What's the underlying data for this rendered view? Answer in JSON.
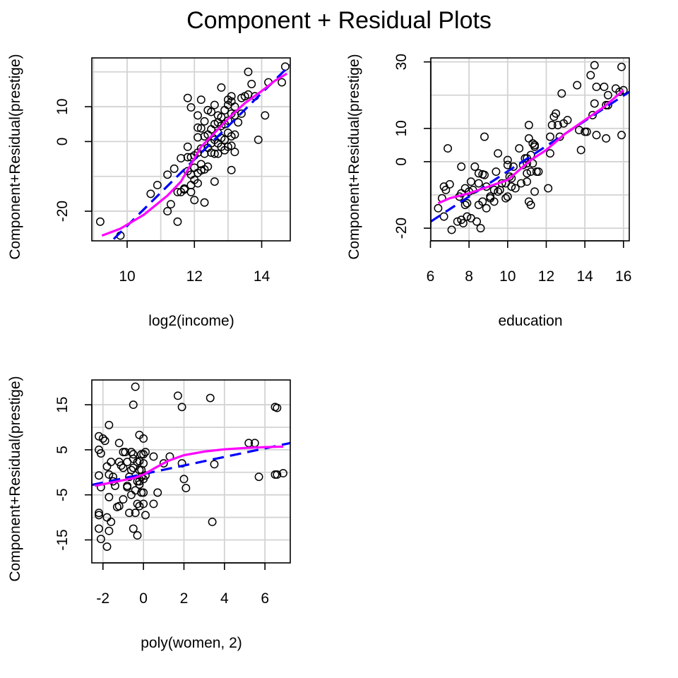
{
  "figure": {
    "title": "Component + Residual Plots"
  },
  "colors": {
    "points": "#000000",
    "linear_fit": "#0000ff",
    "smooth_fit": "#ff00ff",
    "grid": "#d3d3d3"
  },
  "chart_data": [
    {
      "type": "scatter",
      "xlabel": "log2(income)",
      "ylabel": "Component+Residual(prestige)",
      "xlim": [
        8.95,
        14.85
      ],
      "ylim": [
        -28.5,
        24
      ],
      "xticks": [
        10,
        12,
        14
      ],
      "yticks": [
        -20,
        0,
        10
      ],
      "xgrid": [
        9,
        10,
        11,
        12,
        13,
        14
      ],
      "ygrid": [
        -20,
        -10,
        0,
        10,
        20
      ],
      "grid": true,
      "points": [
        [
          9.2,
          -23
        ],
        [
          9.8,
          -27
        ],
        [
          10.7,
          -15
        ],
        [
          11.2,
          -20
        ],
        [
          10.9,
          -12.5
        ],
        [
          11.2,
          -9.5
        ],
        [
          11.3,
          -18
        ],
        [
          11.5,
          -23
        ],
        [
          11.4,
          -7.8
        ],
        [
          11.5,
          -14.5
        ],
        [
          11.6,
          -14.5
        ],
        [
          11.6,
          -4.8
        ],
        [
          11.7,
          -13.5
        ],
        [
          11.7,
          -13.8
        ],
        [
          11.8,
          -8.5
        ],
        [
          11.8,
          -4.5
        ],
        [
          11.8,
          -1.5
        ],
        [
          11.9,
          -14.5
        ],
        [
          11.9,
          -9.5
        ],
        [
          11.9,
          -4.5
        ],
        [
          11.9,
          -12.5
        ],
        [
          11.9,
          9.8
        ],
        [
          11.8,
          12.5
        ],
        [
          12,
          -16.8
        ],
        [
          12,
          -11
        ],
        [
          12,
          -7.5
        ],
        [
          12,
          -4
        ],
        [
          12.1,
          -12
        ],
        [
          12.1,
          -9
        ],
        [
          12.1,
          -3.2
        ],
        [
          12.1,
          1.2
        ],
        [
          12.1,
          4
        ],
        [
          12.1,
          7.5
        ],
        [
          12.2,
          -8.3
        ],
        [
          12.2,
          -6.5
        ],
        [
          12.2,
          -2
        ],
        [
          12.2,
          3.8
        ],
        [
          12.2,
          12
        ],
        [
          12.3,
          -17.5
        ],
        [
          12.3,
          -8
        ],
        [
          12.3,
          -3.5
        ],
        [
          12.3,
          1.5
        ],
        [
          12.3,
          5.8
        ],
        [
          12.4,
          -7.2
        ],
        [
          12.4,
          -1.8
        ],
        [
          12.4,
          2
        ],
        [
          12.4,
          9
        ],
        [
          12.5,
          -3.2
        ],
        [
          12.5,
          -0.5
        ],
        [
          12.5,
          3.5
        ],
        [
          12.5,
          8.5
        ],
        [
          12.6,
          -11.5
        ],
        [
          12.6,
          -3.5
        ],
        [
          12.6,
          0.5
        ],
        [
          12.6,
          5
        ],
        [
          12.6,
          10.5
        ],
        [
          12.7,
          -3.5
        ],
        [
          12.7,
          -0.5
        ],
        [
          12.7,
          2.5
        ],
        [
          12.7,
          5.5
        ],
        [
          12.7,
          7.5
        ],
        [
          12.8,
          -1.5
        ],
        [
          12.8,
          1
        ],
        [
          12.8,
          4.5
        ],
        [
          12.8,
          7
        ],
        [
          12.8,
          15.5
        ],
        [
          12.9,
          -2.5
        ],
        [
          12.9,
          0.5
        ],
        [
          12.9,
          5
        ],
        [
          12.9,
          9
        ],
        [
          13,
          -1.5
        ],
        [
          13,
          2.5
        ],
        [
          13,
          6
        ],
        [
          13,
          10.5
        ],
        [
          13,
          12
        ],
        [
          13.1,
          -8.2
        ],
        [
          13.1,
          -1.2
        ],
        [
          13.1,
          1.5
        ],
        [
          13.1,
          8
        ],
        [
          13.1,
          11.5
        ],
        [
          13.1,
          13
        ],
        [
          13.2,
          -3
        ],
        [
          13.2,
          2
        ],
        [
          13.2,
          7.5
        ],
        [
          13.2,
          10
        ],
        [
          13.3,
          5.5
        ],
        [
          13.4,
          8
        ],
        [
          13.4,
          12.5
        ],
        [
          13.5,
          13
        ],
        [
          13.6,
          20
        ],
        [
          13.6,
          13.5
        ],
        [
          13.8,
          13
        ],
        [
          13.9,
          0.5
        ],
        [
          14.1,
          7.5
        ],
        [
          14.2,
          17
        ],
        [
          14.6,
          17
        ],
        [
          14.7,
          21.5
        ],
        [
          13.7,
          16.5
        ]
      ],
      "linear_fit": [
        [
          9.6,
          -28
        ],
        [
          14.85,
          22
        ]
      ],
      "smooth_fit": [
        [
          9.25,
          -27
        ],
        [
          9.8,
          -25
        ],
        [
          10.5,
          -21
        ],
        [
          11.2,
          -15.5
        ],
        [
          11.6,
          -11.5
        ],
        [
          11.9,
          -6.5
        ],
        [
          12.2,
          -1.5
        ],
        [
          12.5,
          1.5
        ],
        [
          12.8,
          4.5
        ],
        [
          13.1,
          7.5
        ],
        [
          13.5,
          11
        ],
        [
          14,
          14.5
        ],
        [
          14.4,
          17.5
        ],
        [
          14.75,
          19.5
        ]
      ]
    },
    {
      "type": "scatter",
      "xlabel": "education",
      "ylabel": "Component+Residual(prestige)",
      "xlim": [
        6.02,
        16.3
      ],
      "ylim": [
        -23.8,
        31.2
      ],
      "xticks": [
        6,
        8,
        10,
        12,
        14,
        16
      ],
      "yticks": [
        -20,
        0,
        10,
        30
      ],
      "xgrid": [
        6,
        8,
        10,
        12,
        14,
        16
      ],
      "ygrid": [
        -20,
        -10,
        0,
        10,
        20,
        30
      ],
      "grid": true,
      "points": [
        [
          6.4,
          -14
        ],
        [
          6.6,
          -11
        ],
        [
          6.7,
          -7.5
        ],
        [
          6.7,
          -16.5
        ],
        [
          6.8,
          -8.5
        ],
        [
          6.9,
          4
        ],
        [
          7,
          -6.8
        ],
        [
          7.1,
          -20.5
        ],
        [
          7.4,
          -18
        ],
        [
          7.5,
          -10.5
        ],
        [
          7.6,
          -9.5
        ],
        [
          7.6,
          -17.5
        ],
        [
          7.6,
          -1.5
        ],
        [
          7.7,
          -18.5
        ],
        [
          7.8,
          -8
        ],
        [
          7.8,
          -13
        ],
        [
          7.9,
          -16.5
        ],
        [
          7.9,
          -12.5
        ],
        [
          8,
          -9
        ],
        [
          8.1,
          -6
        ],
        [
          8.1,
          -17
        ],
        [
          8.2,
          -8.5
        ],
        [
          8.3,
          -1.5
        ],
        [
          8.4,
          -18
        ],
        [
          8.5,
          -3.5
        ],
        [
          8.5,
          -6.5
        ],
        [
          8.5,
          -13
        ],
        [
          8.6,
          -20
        ],
        [
          8.7,
          -12
        ],
        [
          8.7,
          -3.8
        ],
        [
          8.8,
          -4
        ],
        [
          8.8,
          7.5
        ],
        [
          8.9,
          -14
        ],
        [
          8.9,
          -7.5
        ],
        [
          9.1,
          -10.5
        ],
        [
          9.1,
          -11
        ],
        [
          9.3,
          -12
        ],
        [
          9.3,
          -8.5
        ],
        [
          9.4,
          -3
        ],
        [
          9.5,
          2.5
        ],
        [
          9.5,
          -9
        ],
        [
          9.6,
          -8.5
        ],
        [
          9.7,
          -6.5
        ],
        [
          9.9,
          -6.5
        ],
        [
          9.9,
          -11
        ],
        [
          10,
          -10.5
        ],
        [
          10,
          -1
        ],
        [
          10,
          0.5
        ],
        [
          10.1,
          -4.5
        ],
        [
          10.2,
          -7.5
        ],
        [
          10.2,
          -5
        ],
        [
          10.3,
          -1.5
        ],
        [
          10.4,
          -8
        ],
        [
          10.6,
          4
        ],
        [
          10.7,
          -6.5
        ],
        [
          10.8,
          -1
        ],
        [
          10.9,
          1
        ],
        [
          11,
          -6
        ],
        [
          11,
          -3.5
        ],
        [
          11,
          -0.5
        ],
        [
          11,
          1
        ],
        [
          11.1,
          -12
        ],
        [
          11.1,
          7
        ],
        [
          11.1,
          11
        ],
        [
          11.2,
          -13
        ],
        [
          11.2,
          -3
        ],
        [
          11.2,
          2
        ],
        [
          11.3,
          5.5
        ],
        [
          11.3,
          -0.5
        ],
        [
          11.4,
          4.5
        ],
        [
          11.4,
          5
        ],
        [
          11.4,
          -9
        ],
        [
          11.5,
          -3
        ],
        [
          11.6,
          -3
        ],
        [
          12.1,
          -8
        ],
        [
          12.2,
          2.5
        ],
        [
          12.2,
          7.5
        ],
        [
          12.3,
          11
        ],
        [
          12.4,
          13.5
        ],
        [
          12.5,
          14.5
        ],
        [
          12.6,
          11
        ],
        [
          12.7,
          7.5
        ],
        [
          12.8,
          20.5
        ],
        [
          12.9,
          11.5
        ],
        [
          13.1,
          12.5
        ],
        [
          13.6,
          23
        ],
        [
          13.7,
          9.5
        ],
        [
          13.8,
          3.5
        ],
        [
          14,
          9
        ],
        [
          14.1,
          9
        ],
        [
          14.3,
          26
        ],
        [
          14.4,
          14
        ],
        [
          14.5,
          29
        ],
        [
          14.5,
          17.5
        ],
        [
          14.6,
          8
        ],
        [
          14.6,
          22.5
        ],
        [
          15,
          22.5
        ],
        [
          15.1,
          7
        ],
        [
          15.1,
          17
        ],
        [
          15.2,
          17
        ],
        [
          15.2,
          20
        ],
        [
          15.6,
          22
        ],
        [
          15.8,
          21
        ],
        [
          15.9,
          8
        ],
        [
          15.9,
          28.5
        ],
        [
          16,
          21.5
        ]
      ],
      "linear_fit": [
        [
          6.02,
          -18
        ],
        [
          16.3,
          21
        ]
      ],
      "smooth_fit": [
        [
          6.4,
          -12.5
        ],
        [
          7,
          -11
        ],
        [
          8,
          -9.5
        ],
        [
          9,
          -7.5
        ],
        [
          10,
          -5.5
        ],
        [
          10.5,
          -3
        ],
        [
          11.2,
          0.5
        ],
        [
          12,
          3.5
        ],
        [
          13,
          8.5
        ],
        [
          14,
          12.5
        ],
        [
          15,
          16.5
        ],
        [
          16,
          21.5
        ]
      ]
    },
    {
      "type": "scatter",
      "xlabel": "poly(women, 2)",
      "ylabel": "Component+Residual(prestige)",
      "xlim": [
        -2.55,
        7.25
      ],
      "ylim": [
        -20.1,
        20.5
      ],
      "xticks": [
        -2,
        0,
        2,
        4,
        6
      ],
      "yticks": [
        -15,
        -5,
        5,
        15
      ],
      "xgrid": [
        -2,
        0,
        2,
        4,
        6
      ],
      "ygrid": [
        -15,
        -10,
        -5,
        0,
        5,
        10,
        15
      ],
      "grid": true,
      "points": [
        [
          -2.2,
          8
        ],
        [
          -2.2,
          5
        ],
        [
          -2.1,
          4.2
        ],
        [
          -2.2,
          -0.7
        ],
        [
          -2.1,
          -3.3
        ],
        [
          -2.2,
          -9
        ],
        [
          -2.2,
          -9.5
        ],
        [
          -2.2,
          -12.5
        ],
        [
          -2.1,
          -14.8
        ],
        [
          -2,
          7.5
        ],
        [
          -1.9,
          7
        ],
        [
          -1.8,
          -16.5
        ],
        [
          -1.8,
          1.3
        ],
        [
          -1.7,
          -0.5
        ],
        [
          -1.7,
          -5.5
        ],
        [
          -1.8,
          -10
        ],
        [
          -1.7,
          -13
        ],
        [
          -1.6,
          -11
        ],
        [
          -1.7,
          10.5
        ],
        [
          -1.6,
          2.3
        ],
        [
          -1.5,
          -2
        ],
        [
          -1.5,
          -1
        ],
        [
          -1.4,
          -3
        ],
        [
          -1.3,
          -7.7
        ],
        [
          -1.2,
          -7.5
        ],
        [
          -1.2,
          2.3
        ],
        [
          -1.2,
          6.5
        ],
        [
          -1.1,
          1.5
        ],
        [
          -1,
          -6
        ],
        [
          -1,
          1
        ],
        [
          -1,
          4.5
        ],
        [
          -0.9,
          4.5
        ],
        [
          -0.8,
          2.3
        ],
        [
          -0.8,
          -3
        ],
        [
          -0.8,
          -3.3
        ],
        [
          -0.7,
          -9
        ],
        [
          -0.7,
          -1
        ],
        [
          -0.6,
          -5
        ],
        [
          -0.6,
          0.5
        ],
        [
          -0.6,
          4.5
        ],
        [
          -0.5,
          -12.5
        ],
        [
          -0.5,
          1
        ],
        [
          -0.5,
          3
        ],
        [
          -0.5,
          4
        ],
        [
          -0.5,
          15
        ],
        [
          -0.4,
          19
        ],
        [
          -0.4,
          -4
        ],
        [
          -0.4,
          -9
        ],
        [
          -0.3,
          -7
        ],
        [
          -0.3,
          -14
        ],
        [
          -0.3,
          2.3
        ],
        [
          -0.3,
          -2
        ],
        [
          -0.2,
          -7.5
        ],
        [
          -0.2,
          -2.7
        ],
        [
          -0.2,
          -2
        ],
        [
          -0.2,
          0.5
        ],
        [
          -0.2,
          2.5
        ],
        [
          -0.2,
          8.3
        ],
        [
          -0.1,
          -4.5
        ],
        [
          -0.1,
          -1
        ],
        [
          -0.1,
          0.5
        ],
        [
          -0.1,
          4
        ],
        [
          0,
          -7
        ],
        [
          0,
          -4.5
        ],
        [
          0,
          -1.5
        ],
        [
          0,
          2
        ],
        [
          0,
          4
        ],
        [
          0,
          7.5
        ],
        [
          0.1,
          -9.5
        ],
        [
          0.1,
          -0.7
        ],
        [
          0.1,
          4.5
        ],
        [
          0.5,
          -7
        ],
        [
          0.5,
          3.5
        ],
        [
          0.7,
          -4.5
        ],
        [
          1,
          2
        ],
        [
          1.3,
          3.5
        ],
        [
          1.7,
          17
        ],
        [
          1.9,
          2
        ],
        [
          1.9,
          14.5
        ],
        [
          2,
          -1.5
        ],
        [
          2.1,
          -3.5
        ],
        [
          3.3,
          16.5
        ],
        [
          3.4,
          -11
        ],
        [
          3.5,
          1.8
        ],
        [
          5.2,
          6.5
        ],
        [
          5.5,
          6.5
        ],
        [
          5.7,
          -1
        ],
        [
          6.5,
          14.5
        ],
        [
          6.5,
          -0.5
        ],
        [
          6.6,
          14.3
        ],
        [
          6.6,
          -0.5
        ],
        [
          6.9,
          -0.2
        ]
      ],
      "linear_fit": [
        [
          -2.55,
          -2.8
        ],
        [
          7.25,
          6.5
        ]
      ],
      "smooth_fit": [
        [
          -2.4,
          -3
        ],
        [
          -1.5,
          -2.2
        ],
        [
          -0.5,
          -1.3
        ],
        [
          0,
          -0.5
        ],
        [
          0.5,
          0.8
        ],
        [
          1.2,
          2.5
        ],
        [
          2,
          3.8
        ],
        [
          3,
          4.6
        ],
        [
          4,
          5.1
        ],
        [
          5,
          5.4
        ],
        [
          6,
          5.6
        ],
        [
          6.9,
          5.7
        ]
      ]
    }
  ]
}
